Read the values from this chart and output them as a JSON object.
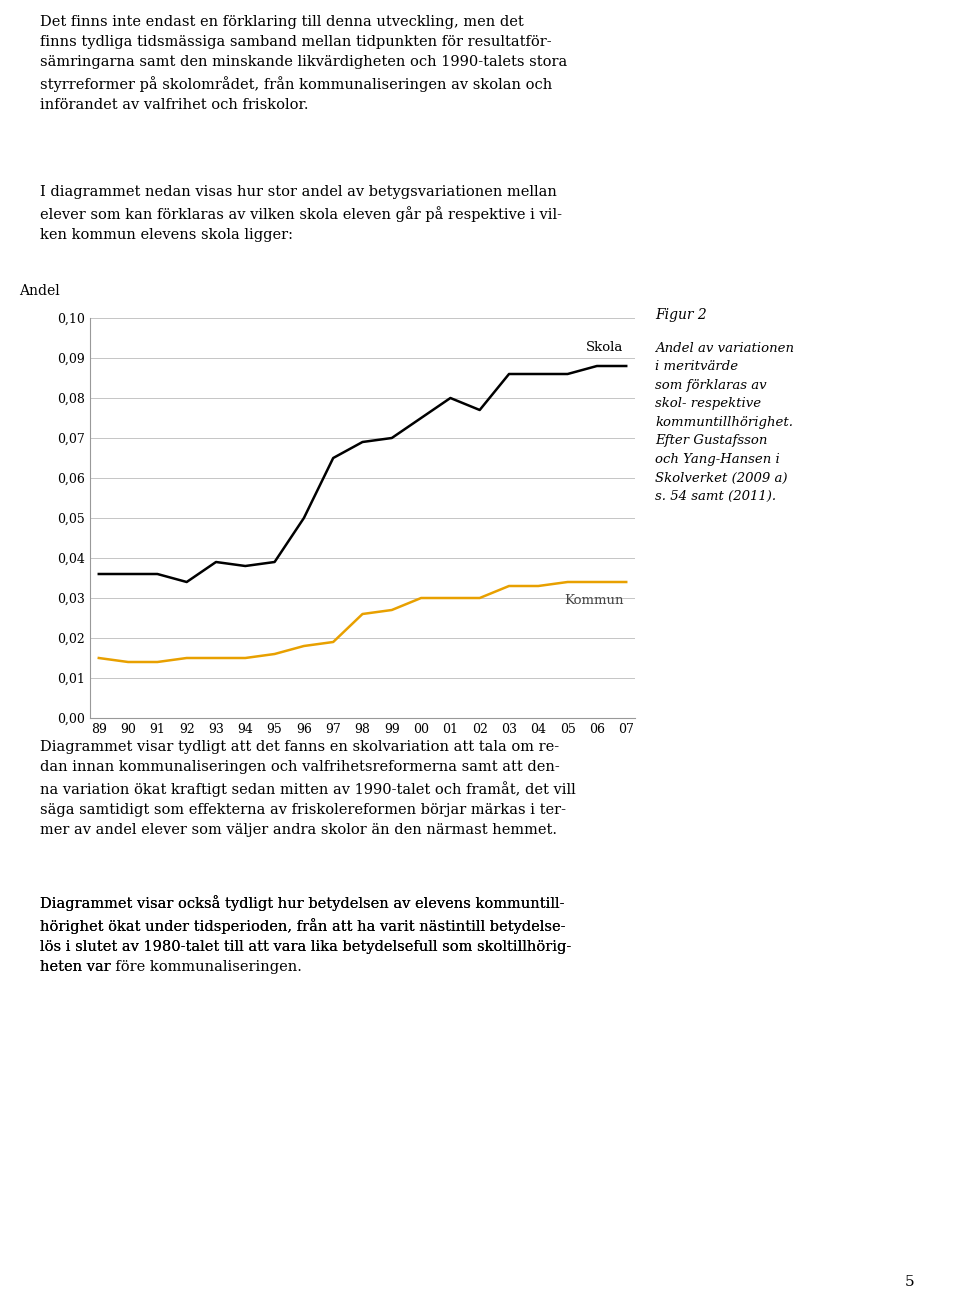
{
  "years": [
    "89",
    "90",
    "91",
    "92",
    "93",
    "94",
    "95",
    "96",
    "97",
    "98",
    "99",
    "00",
    "01",
    "02",
    "03",
    "04",
    "05",
    "06",
    "07"
  ],
  "skola": [
    0.036,
    0.036,
    0.036,
    0.034,
    0.039,
    0.038,
    0.039,
    0.05,
    0.065,
    0.069,
    0.07,
    0.075,
    0.08,
    0.077,
    0.086,
    0.086,
    0.086,
    0.088,
    0.088
  ],
  "kommun": [
    0.015,
    0.014,
    0.014,
    0.015,
    0.015,
    0.015,
    0.016,
    0.018,
    0.019,
    0.026,
    0.027,
    0.03,
    0.03,
    0.03,
    0.033,
    0.033,
    0.034,
    0.034,
    0.034
  ],
  "skola_color": "#000000",
  "kommun_color": "#E8A000",
  "background_color": "#ffffff",
  "ylabel": "Andel",
  "ylim": [
    0.0,
    0.1
  ],
  "yticks": [
    0.0,
    0.01,
    0.02,
    0.03,
    0.04,
    0.05,
    0.06,
    0.07,
    0.08,
    0.09,
    0.1
  ],
  "ytick_labels": [
    "0,00",
    "0,01",
    "0,02",
    "0,03",
    "0,04",
    "0,05",
    "0,06",
    "0,07",
    "0,08",
    "0,09",
    "0,10"
  ],
  "skola_label": "Skola",
  "kommun_label": "Kommun",
  "figur_label": "Figur 2",
  "figur_caption": "Andel av variationen\ni meritvärde\nsom förklaras av\nskol- respektive\nkommuntillhörighet.\nEfter Gustafsson\noch Yang-Hansen i\nSkolverket (2009 a)\ns. 54 samt (2011).",
  "text_above": "Det finns inte endast en förklaring till denna utveckling, men det\nfinns tydliga tidsmässiga samband mellan tidpunkten för resultatför-\nsämringarna samt den minskande likvärdigheten och 1990-talets stora\nstyrreformer på skolområdet, från kommunaliseringen av skolan och\ninförandet av valfrihet och friskolor.",
  "text_intro": "I diagrammet nedan visas hur stor andel av betygsvariationen mellan\nelever som kan förklaras av vilken skola eleven går på respektive i vil-\nken kommun elevens skola ligger:",
  "text_below1": "Diagrammet visar tydligt att det fanns en skolvariation att tala om re-\ndan innan kommunaliseringen och valfrihetsreformerna samt att den-\nna variation ökat kraftigt sedan mitten av 1990-talet och framåt, det vill\nsäga samtidigt som effekterna av friskolereformen börjar märkas i ter-\nmer av andel elever som väljer andra skolor än den närmast hemmet.",
  "text_below2": "Diagrammet visar också tydligt hur betydelsen av elevens kommuntill-\nhörighet ökat under tidsperioden, från att ha varit nästintill betydelse-\nlös i slutet av 1980-talet till att vara lika betydelsefull som skoltillhörig-\nheten var îfore kommunaliseringen.",
  "page_number": "5"
}
